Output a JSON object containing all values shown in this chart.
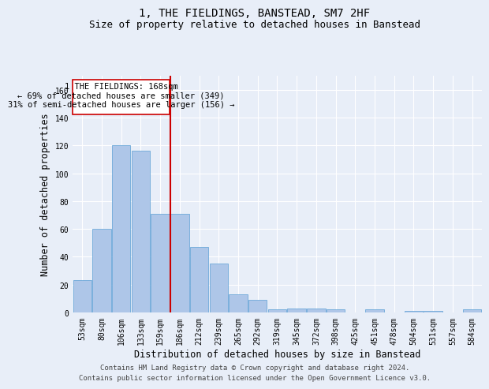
{
  "title": "1, THE FIELDINGS, BANSTEAD, SM7 2HF",
  "subtitle": "Size of property relative to detached houses in Banstead",
  "xlabel": "Distribution of detached houses by size in Banstead",
  "ylabel": "Number of detached properties",
  "bar_labels": [
    "53sqm",
    "80sqm",
    "106sqm",
    "133sqm",
    "159sqm",
    "186sqm",
    "212sqm",
    "239sqm",
    "265sqm",
    "292sqm",
    "319sqm",
    "345sqm",
    "372sqm",
    "398sqm",
    "425sqm",
    "451sqm",
    "478sqm",
    "504sqm",
    "531sqm",
    "557sqm",
    "584sqm"
  ],
  "bar_values": [
    23,
    60,
    120,
    116,
    71,
    71,
    47,
    35,
    13,
    9,
    2,
    3,
    3,
    2,
    0,
    2,
    0,
    1,
    1,
    0,
    2
  ],
  "bar_color": "#aec6e8",
  "bar_edge_color": "#5a9fd4",
  "ylim": [
    0,
    170
  ],
  "yticks": [
    0,
    20,
    40,
    60,
    80,
    100,
    120,
    140,
    160
  ],
  "property_label": "1 THE FIELDINGS: 168sqm",
  "annotation_line1": "← 69% of detached houses are smaller (349)",
  "annotation_line2": "31% of semi-detached houses are larger (156) →",
  "vline_bin_index": 4,
  "footer_line1": "Contains HM Land Registry data © Crown copyright and database right 2024.",
  "footer_line2": "Contains public sector information licensed under the Open Government Licence v3.0.",
  "background_color": "#e8eef8",
  "plot_background": "#e8eef8",
  "grid_color": "#ffffff",
  "vline_color": "#cc0000",
  "annotation_box_color": "#cc0000",
  "title_fontsize": 10,
  "subtitle_fontsize": 9,
  "axis_label_fontsize": 8.5,
  "tick_fontsize": 7,
  "footer_fontsize": 6.5,
  "annotation_fontsize": 7.5
}
